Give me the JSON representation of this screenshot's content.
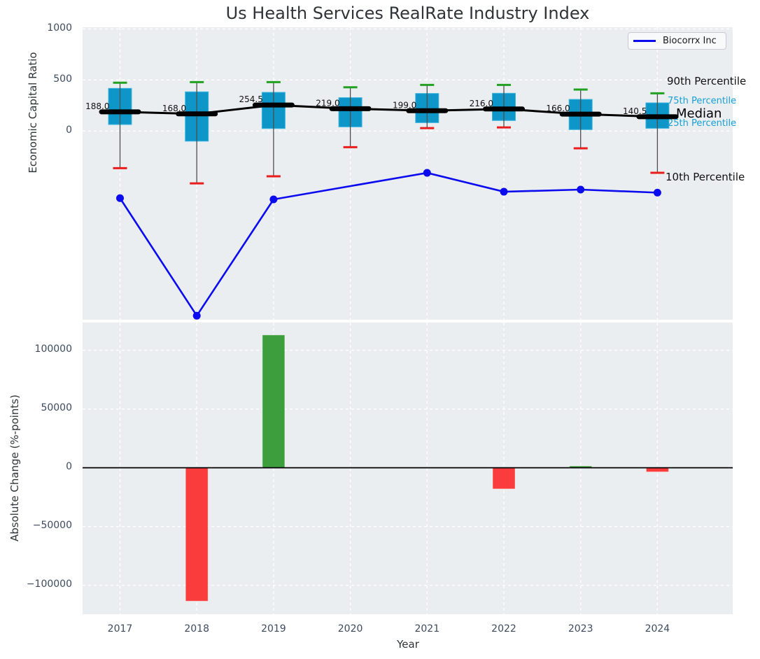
{
  "title": "Us Health Services RealRate Industry Index",
  "legend": {
    "label": "Biocorrx Inc"
  },
  "axes": {
    "top": {
      "ylabel": "Economic Capital Ratio",
      "ytick_labels": [
        "1000",
        "500",
        "0"
      ]
    },
    "bottom": {
      "ylabel": "Absolute Change (%-points)",
      "xlabel": "Year",
      "ytick_labels": [
        "100000",
        "50000",
        "0",
        "−50000",
        "−100000"
      ],
      "xtick_labels": [
        "2017",
        "2018",
        "2019",
        "2020",
        "2021",
        "2022",
        "2023",
        "2024"
      ]
    }
  },
  "annotations": [
    {
      "id": "p90",
      "text": "90th Percentile",
      "color": "#111111",
      "size": 15
    },
    {
      "id": "p75",
      "text": "75th Percentile",
      "color": "#16a0d6",
      "size": 13
    },
    {
      "id": "median",
      "text": "Median",
      "color": "#000000",
      "size": 18
    },
    {
      "id": "p25",
      "text": "25th Percentile",
      "color": "#16a0d6",
      "size": 13
    },
    {
      "id": "p10",
      "text": "10th Percentile",
      "color": "#111111",
      "size": 15
    }
  ],
  "colors": {
    "plot_bg": "#ebeef1",
    "grid": "#ffffff",
    "box_fill": "#0f96c9",
    "box_edge": "#3cb4e0",
    "whisker": "#4d4d4d",
    "cap_high_green": "#22a022",
    "cap_low_red": "#ea1c1c",
    "median_black": "#000000",
    "biocorrx_blue": "#0b0bf0",
    "bar_positive": "#3c9e3c",
    "bar_negative": "#fa3c3c",
    "tick_text": "#3d4b61",
    "annotation_cyan": "#16a0d6"
  },
  "chart_data": [
    {
      "type": "boxplot+line",
      "title": "Us Health Services RealRate Industry Index",
      "ylabel": "Economic Capital Ratio",
      "ylim": [
        -1847,
        1016
      ],
      "yticks": [
        0,
        500,
        1000
      ],
      "grid": true,
      "legend_position": "upper right",
      "years": [
        2017,
        2018,
        2019,
        2020,
        2021,
        2022,
        2023,
        2024
      ],
      "boxes": [
        {
          "year": 2017,
          "p10": -363,
          "p25": 64,
          "median": 188.0,
          "median_label": "188.0",
          "p75": 418,
          "p90": 473
        },
        {
          "year": 2018,
          "p10": -512,
          "p25": -99,
          "median": 168.0,
          "median_label": "168.0",
          "p75": 384,
          "p90": 479
        },
        {
          "year": 2019,
          "p10": -443,
          "p25": 25,
          "median": 254.5,
          "median_label": "254.5",
          "p75": 379,
          "p90": 479
        },
        {
          "year": 2020,
          "p10": -158,
          "p25": 41,
          "median": 219.0,
          "median_label": "219.0",
          "p75": 327,
          "p90": 429
        },
        {
          "year": 2021,
          "p10": 29,
          "p25": 82,
          "median": 199.0,
          "median_label": "199.0",
          "p75": 368,
          "p90": 452
        },
        {
          "year": 2022,
          "p10": 36,
          "p25": 103,
          "median": 216.0,
          "median_label": "216.0",
          "p75": 370,
          "p90": 452
        },
        {
          "year": 2023,
          "p10": -169,
          "p25": 14,
          "median": 166.0,
          "median_label": "166.0",
          "p75": 310,
          "p90": 406
        },
        {
          "year": 2024,
          "p10": -409,
          "p25": 27,
          "median": 140.5,
          "median_label": "140.5",
          "p75": 276,
          "p90": 370
        }
      ],
      "series": [
        {
          "name": "Biocorrx Inc",
          "x": [
            2017,
            2018,
            2019,
            2021,
            2022,
            2023,
            2024
          ],
          "values": [
            -657,
            -1808,
            -669,
            -409,
            -594,
            -573,
            -603
          ]
        }
      ]
    },
    {
      "type": "bar",
      "ylabel": "Absolute Change (%-points)",
      "xlabel": "Year",
      "categories": [
        2017,
        2018,
        2019,
        2020,
        2021,
        2022,
        2023,
        2024
      ],
      "values": [
        null,
        -113500,
        113000,
        null,
        null,
        -18000,
        1500,
        -3500
      ],
      "yticks": [
        -100000,
        -50000,
        0,
        50000,
        100000
      ],
      "ylim": [
        -125000,
        123600
      ],
      "grid": true,
      "zero_line": true
    }
  ]
}
